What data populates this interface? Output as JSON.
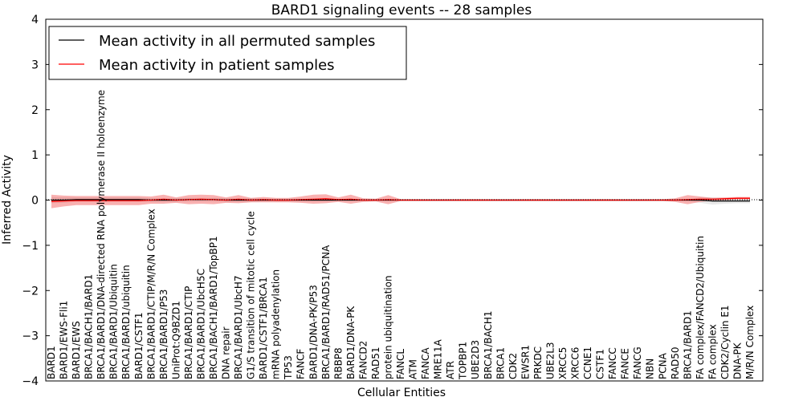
{
  "chart_data": {
    "type": "line",
    "title": "BARD1 signaling events -- 28 samples",
    "xlabel": "Cellular Entities",
    "ylabel": "Inferred Activity",
    "ylim": [
      -4,
      4
    ],
    "yticks": [
      4,
      3,
      2,
      1,
      0,
      -1,
      -2,
      -3,
      -4
    ],
    "ytick_labels": [
      "4",
      "3",
      "2",
      "1",
      "0",
      "−1",
      "−2",
      "−3",
      "−4"
    ],
    "legend": {
      "placement": "top-left",
      "entries": [
        {
          "label": "Mean activity in all permuted samples",
          "color": "#000000"
        },
        {
          "label": "Mean activity in patient samples",
          "color": "#ff0000"
        }
      ]
    },
    "categories": [
      "BARD1",
      "BARD1/EWS-Fli1",
      "BARD1/EWS",
      "BRCA1/BACH1/BARD1",
      "BRCA1/BARD1/DNA-directed RNA polymerase II holoenzyme",
      "BRCA1/BARD1/Ubiquitin",
      "BRCA1/BARD1/ubiquitin",
      "BARD1/CSTF1",
      "BRCA1/BARD1/CTIP/M/R/N Complex",
      "BRCA1/BARD1/P53",
      "UniProt:Q9BZD1",
      "BRCA1/BARD1/CTIP",
      "BRCA1/BARD1/UbcH5C",
      "BRCA1/BACH1/BARD1/TopBP1",
      "DNA repair",
      "BRCA1/BARD1/UbcH7",
      "G1/S transition of mitotic cell cycle",
      "BARD1/CSTF1/BRCA1",
      "mRNA polyadenylation",
      "TP53",
      "FANCF",
      "BARD1/DNA-PK/P53",
      "BRCA1/BARD1/RAD51/PCNA",
      "RBBP8",
      "BARD1/DNA-PK",
      "FANCD2",
      "RAD51",
      "protein ubiquitination",
      "FANCL",
      "ATM",
      "FANCA",
      "MRE11A",
      "ATR",
      "TOPBP1",
      "UBE2D3",
      "BRCA1/BACH1",
      "BRCA1",
      "CDK2",
      "EWSR1",
      "PRKDC",
      "UBE2L3",
      "XRCC5",
      "XRCC6",
      "CCNE1",
      "CSTF1",
      "FANCC",
      "FANCE",
      "FANCG",
      "NBN",
      "PCNA",
      "RAD50",
      "BRCA1/BARD1",
      "FA complex/FANCD2/Ubiquitin",
      "FA complex",
      "CDK2/Cyclin E1",
      "DNA-PK",
      "M/R/N Complex"
    ],
    "series": [
      {
        "name": "Mean activity in all permuted samples",
        "color": "#000000",
        "values": [
          0.0,
          0.0,
          0.01,
          0.01,
          0.01,
          0.01,
          0.01,
          0.01,
          0.0,
          0.0,
          0.0,
          0.01,
          0.01,
          0.01,
          0.0,
          0.0,
          0.0,
          0.0,
          0.0,
          0.0,
          0.0,
          0.0,
          0.0,
          0.0,
          0.0,
          0.0,
          0.0,
          0.0,
          0.0,
          0.0,
          0.0,
          0.0,
          0.0,
          0.0,
          0.0,
          0.0,
          0.0,
          0.0,
          0.0,
          0.0,
          0.0,
          0.0,
          0.0,
          0.0,
          0.0,
          0.0,
          0.0,
          0.0,
          0.0,
          0.0,
          0.0,
          0.0,
          0.0,
          -0.02,
          -0.02,
          -0.02,
          -0.02
        ],
        "band": [
          0.07,
          0.06,
          0.05,
          0.05,
          0.05,
          0.05,
          0.05,
          0.05,
          0.04,
          0.04,
          0.04,
          0.04,
          0.04,
          0.04,
          0.04,
          0.04,
          0.04,
          0.03,
          0.03,
          0.03,
          0.03,
          0.03,
          0.03,
          0.02,
          0.02,
          0.02,
          0.02,
          0.02,
          0.02,
          0.02,
          0.02,
          0.02,
          0.02,
          0.02,
          0.02,
          0.02,
          0.02,
          0.02,
          0.02,
          0.02,
          0.02,
          0.02,
          0.02,
          0.02,
          0.02,
          0.02,
          0.02,
          0.02,
          0.02,
          0.02,
          0.02,
          0.02,
          0.06,
          0.08,
          0.06,
          0.05,
          0.05
        ]
      },
      {
        "name": "Mean activity in patient samples",
        "color": "#ff0000",
        "values": [
          -0.03,
          -0.02,
          -0.01,
          -0.01,
          -0.01,
          -0.01,
          -0.01,
          -0.01,
          0.0,
          0.02,
          0.0,
          0.01,
          0.02,
          0.01,
          0.0,
          0.02,
          0.0,
          0.01,
          0.0,
          0.0,
          0.01,
          0.02,
          0.03,
          0.01,
          0.02,
          0.0,
          0.0,
          0.01,
          0.0,
          0.0,
          0.0,
          0.0,
          0.0,
          0.0,
          0.0,
          0.0,
          0.0,
          0.0,
          0.0,
          0.0,
          0.0,
          0.0,
          0.0,
          0.0,
          0.0,
          0.0,
          0.0,
          0.0,
          0.0,
          0.0,
          0.0,
          0.01,
          0.02,
          0.02,
          0.03,
          0.04,
          0.04
        ],
        "band": [
          0.15,
          0.12,
          0.1,
          0.1,
          0.1,
          0.1,
          0.1,
          0.1,
          0.08,
          0.1,
          0.06,
          0.1,
          0.1,
          0.1,
          0.06,
          0.09,
          0.05,
          0.06,
          0.05,
          0.05,
          0.07,
          0.1,
          0.1,
          0.05,
          0.1,
          0.04,
          0.03,
          0.1,
          0.02,
          0.02,
          0.02,
          0.02,
          0.02,
          0.02,
          0.02,
          0.02,
          0.02,
          0.02,
          0.02,
          0.02,
          0.02,
          0.02,
          0.02,
          0.02,
          0.02,
          0.02,
          0.02,
          0.02,
          0.02,
          0.02,
          0.04,
          0.1,
          0.06,
          0.03,
          0.03,
          0.03,
          0.03
        ]
      }
    ]
  }
}
